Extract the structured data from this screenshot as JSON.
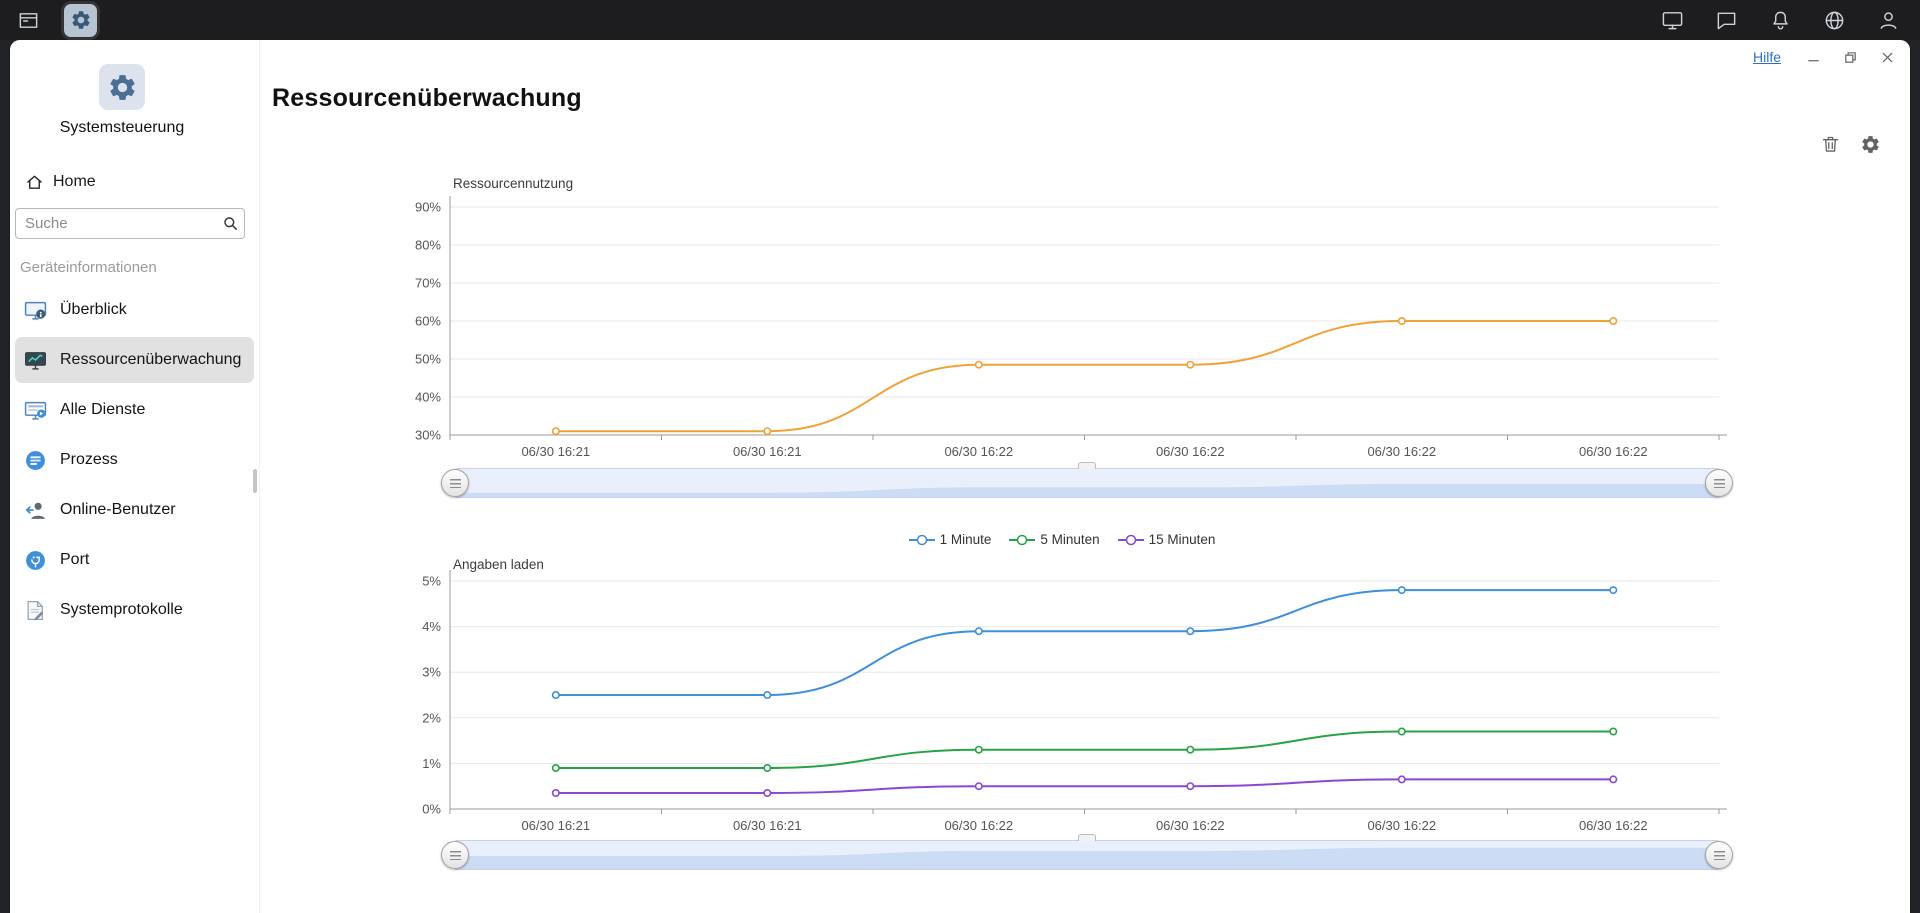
{
  "taskbar": {
    "left_icons": [
      "workspace-icon",
      "control-panel-app-icon"
    ],
    "right_icons": [
      "display-icon",
      "chat-icon",
      "bell-icon",
      "globe-icon",
      "user-icon"
    ]
  },
  "window": {
    "help_label": "Hilfe",
    "control_icons": [
      "minimize-icon",
      "maximize-icon",
      "close-icon"
    ]
  },
  "sidebar": {
    "app_title": "Systemsteuerung",
    "home_label": "Home",
    "search_placeholder": "Suche",
    "section_label": "Geräteinformationen",
    "items": [
      {
        "label": "Überblick",
        "icon": "overview-icon",
        "selected": false
      },
      {
        "label": "Ressourcenüberwachung",
        "icon": "resource-monitor-icon",
        "selected": true
      },
      {
        "label": "Alle Dienste",
        "icon": "services-icon",
        "selected": false
      },
      {
        "label": "Prozess",
        "icon": "process-icon",
        "selected": false
      },
      {
        "label": "Online-Benutzer",
        "icon": "online-users-icon",
        "selected": false
      },
      {
        "label": "Port",
        "icon": "port-icon",
        "selected": false
      },
      {
        "label": "Systemprotokolle",
        "icon": "system-logs-icon",
        "selected": false
      }
    ]
  },
  "main": {
    "page_title": "Ressourcenüberwachung"
  },
  "chart_data": [
    {
      "type": "line",
      "title": "Ressourcennutzung",
      "x": [
        "06/30 16:21",
        "06/30 16:21",
        "06/30 16:22",
        "06/30 16:22",
        "06/30 16:22",
        "06/30 16:22"
      ],
      "ytick_labels": [
        "90%",
        "80%",
        "70%",
        "60%",
        "50%",
        "40%",
        "30%"
      ],
      "ylim": [
        30,
        90
      ],
      "grid": true,
      "series": [
        {
          "name": "Ressourcennutzung",
          "color": "#f0a238",
          "values": [
            31,
            31,
            48.5,
            48.5,
            60,
            60
          ]
        }
      ]
    },
    {
      "type": "line",
      "title": "Angaben laden",
      "x": [
        "06/30 16:21",
        "06/30 16:21",
        "06/30 16:22",
        "06/30 16:22",
        "06/30 16:22",
        "06/30 16:22"
      ],
      "ytick_labels": [
        "5%",
        "4%",
        "3%",
        "2%",
        "1%",
        "0%"
      ],
      "ylim": [
        0,
        5
      ],
      "grid": true,
      "legend_position": "top",
      "series": [
        {
          "name": "1 Minute",
          "color": "#3f8fd9",
          "values": [
            2.5,
            2.5,
            3.9,
            3.9,
            4.8,
            4.8
          ]
        },
        {
          "name": "5 Minuten",
          "color": "#27a346",
          "values": [
            0.9,
            0.9,
            1.3,
            1.3,
            1.7,
            1.7
          ]
        },
        {
          "name": "15 Minuten",
          "color": "#8b46d2",
          "values": [
            0.35,
            0.35,
            0.5,
            0.5,
            0.65,
            0.65
          ]
        }
      ]
    }
  ]
}
